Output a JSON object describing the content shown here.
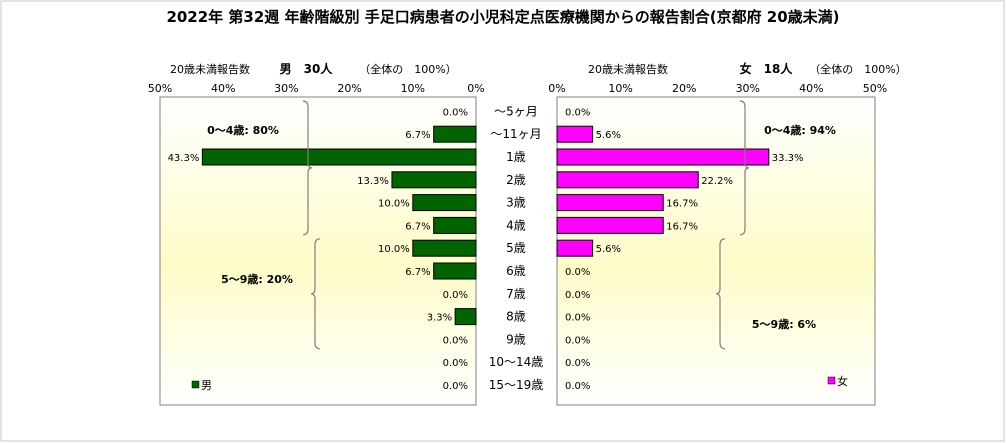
{
  "page": {
    "title": "2022年 第32週 年齢階級別 手足口病患者の小児科定点医療機関からの報告割合(京都府 20歳未満)"
  },
  "chart_data": {
    "type": "bar",
    "categories": [
      "～5ヶ月",
      "～11ヶ月",
      "1歳",
      "2歳",
      "3歳",
      "4歳",
      "5歳",
      "6歳",
      "7歳",
      "8歳",
      "9歳",
      "10～14歳",
      "15～19歳"
    ],
    "xlim": [
      0,
      50
    ],
    "x_ticks": [
      "0%",
      "10%",
      "20%",
      "30%",
      "40%",
      "50%"
    ],
    "grid": false,
    "series": [
      {
        "name": "男",
        "legend_label": "男",
        "header_count_label": "20歳未満報告数",
        "header_total": "男　30人",
        "header_share": "（全体の　100%）",
        "values": [
          0.0,
          6.7,
          43.3,
          13.3,
          10.0,
          6.7,
          10.0,
          6.7,
          0.0,
          3.3,
          0.0,
          0.0,
          0.0
        ],
        "labels": [
          "0.0%",
          "6.7%",
          "43.3%",
          "13.3%",
          "10.0%",
          "6.7%",
          "10.0%",
          "6.7%",
          "0.0%",
          "3.3%",
          "0.0%",
          "0.0%",
          "0.0%"
        ],
        "color": "#006400",
        "bracket_labels": [
          "0～4歳: 80%",
          "5～9歳: 20%"
        ]
      },
      {
        "name": "女",
        "legend_label": "女",
        "header_count_label": "20歳未満報告数",
        "header_total": "女　18人",
        "header_share": "（全体の　100%）",
        "values": [
          0.0,
          5.6,
          33.3,
          22.2,
          16.7,
          16.7,
          5.6,
          0.0,
          0.0,
          0.0,
          0.0,
          0.0,
          0.0
        ],
        "labels": [
          "0.0%",
          "5.6%",
          "33.3%",
          "22.2%",
          "16.7%",
          "16.7%",
          "5.6%",
          "0.0%",
          "0.0%",
          "0.0%",
          "0.0%",
          "0.0%",
          "0.0%"
        ],
        "color": "#ff00ff",
        "bracket_labels": [
          "0～4歳: 94%",
          "5～9歳: 6%"
        ]
      }
    ]
  }
}
